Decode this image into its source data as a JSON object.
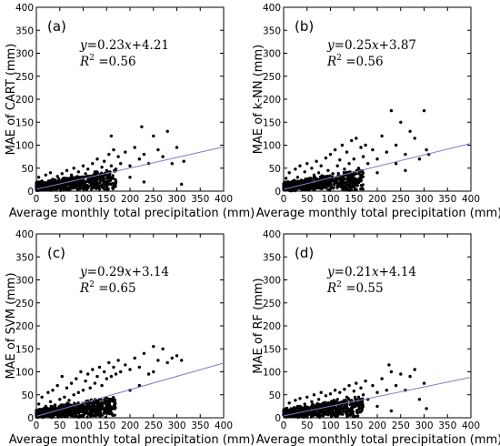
{
  "chart_data": [
    {
      "type": "scatter",
      "panel_label": "(a)",
      "ylabel": "MAE of CART (mm)",
      "xlabel": "Average monthly total precipitation (mm)",
      "xlim": [
        0,
        400
      ],
      "ylim": [
        0,
        400
      ],
      "xticks": [
        0,
        50,
        100,
        150,
        200,
        250,
        300,
        350,
        400
      ],
      "yticks": [
        0,
        50,
        100,
        150,
        200,
        250,
        300,
        350,
        400
      ],
      "fit": {
        "slope": 0.23,
        "intercept": 4.21,
        "r2": 0.56,
        "eq_text": "y=0.23x+4.21",
        "r2_text": "R2 =0.56"
      },
      "points": [
        [
          5,
          30
        ],
        [
          12,
          22
        ],
        [
          20,
          35
        ],
        [
          25,
          18
        ],
        [
          30,
          40
        ],
        [
          35,
          26
        ],
        [
          40,
          15
        ],
        [
          45,
          32
        ],
        [
          50,
          20
        ],
        [
          55,
          38
        ],
        [
          60,
          28
        ],
        [
          65,
          45
        ],
        [
          70,
          22
        ],
        [
          75,
          35
        ],
        [
          80,
          50
        ],
        [
          85,
          30
        ],
        [
          90,
          42
        ],
        [
          95,
          25
        ],
        [
          100,
          55
        ],
        [
          105,
          38
        ],
        [
          110,
          48
        ],
        [
          115,
          30
        ],
        [
          120,
          60
        ],
        [
          125,
          42
        ],
        [
          130,
          70
        ],
        [
          135,
          35
        ],
        [
          140,
          52
        ],
        [
          145,
          65
        ],
        [
          150,
          45
        ],
        [
          155,
          80
        ],
        [
          160,
          55
        ],
        [
          165,
          90
        ],
        [
          170,
          48
        ],
        [
          175,
          75
        ],
        [
          180,
          60
        ],
        [
          190,
          85
        ],
        [
          200,
          55
        ],
        [
          210,
          95
        ],
        [
          220,
          70
        ],
        [
          225,
          140
        ],
        [
          230,
          80
        ],
        [
          240,
          60
        ],
        [
          250,
          120
        ],
        [
          260,
          90
        ],
        [
          270,
          75
        ],
        [
          280,
          130
        ],
        [
          290,
          60
        ],
        [
          300,
          95
        ],
        [
          310,
          15
        ],
        [
          315,
          65
        ],
        [
          160,
          120
        ],
        [
          170,
          20
        ],
        [
          200,
          30
        ],
        [
          230,
          20
        ]
      ]
    },
    {
      "type": "scatter",
      "panel_label": "(b)",
      "ylabel": "MAE of k-NN (mm)",
      "xlabel": "Average monthly total precipitation (mm)",
      "xlim": [
        0,
        400
      ],
      "ylim": [
        0,
        400
      ],
      "xticks": [
        0,
        50,
        100,
        150,
        200,
        250,
        300,
        350,
        400
      ],
      "yticks": [
        0,
        50,
        100,
        150,
        200,
        250,
        300,
        350,
        400
      ],
      "fit": {
        "slope": 0.25,
        "intercept": 3.87,
        "r2": 0.56,
        "eq_text": "y=0.25x+3.87",
        "r2_text": "R2 =0.56"
      },
      "points": [
        [
          5,
          28
        ],
        [
          12,
          40
        ],
        [
          20,
          22
        ],
        [
          25,
          48
        ],
        [
          30,
          30
        ],
        [
          35,
          55
        ],
        [
          40,
          20
        ],
        [
          45,
          42
        ],
        [
          50,
          60
        ],
        [
          55,
          28
        ],
        [
          60,
          50
        ],
        [
          65,
          35
        ],
        [
          70,
          65
        ],
        [
          75,
          40
        ],
        [
          80,
          55
        ],
        [
          85,
          30
        ],
        [
          90,
          72
        ],
        [
          95,
          45
        ],
        [
          100,
          80
        ],
        [
          105,
          38
        ],
        [
          110,
          90
        ],
        [
          115,
          55
        ],
        [
          120,
          68
        ],
        [
          125,
          100
        ],
        [
          130,
          48
        ],
        [
          135,
          85
        ],
        [
          140,
          60
        ],
        [
          145,
          110
        ],
        [
          150,
          70
        ],
        [
          155,
          115
        ],
        [
          160,
          50
        ],
        [
          165,
          95
        ],
        [
          170,
          75
        ],
        [
          175,
          100
        ],
        [
          180,
          60
        ],
        [
          190,
          90
        ],
        [
          200,
          70
        ],
        [
          210,
          120
        ],
        [
          220,
          85
        ],
        [
          230,
          175
        ],
        [
          240,
          100
        ],
        [
          250,
          150
        ],
        [
          260,
          80
        ],
        [
          270,
          130
        ],
        [
          280,
          115
        ],
        [
          290,
          70
        ],
        [
          300,
          175
        ],
        [
          305,
          90
        ],
        [
          310,
          80
        ],
        [
          240,
          60
        ],
        [
          200,
          40
        ],
        [
          260,
          45
        ]
      ]
    },
    {
      "type": "scatter",
      "panel_label": "(c)",
      "ylabel": "MAE of SVM (mm)",
      "xlabel": "Average monthly total precipitation (mm)",
      "xlim": [
        0,
        400
      ],
      "ylim": [
        0,
        400
      ],
      "xticks": [
        0,
        50,
        100,
        150,
        200,
        250,
        300,
        350,
        400
      ],
      "yticks": [
        0,
        50,
        100,
        150,
        200,
        250,
        300,
        350,
        400
      ],
      "fit": {
        "slope": 0.29,
        "intercept": 3.14,
        "r2": 0.65,
        "eq_text": "y=0.29x+3.14",
        "r2_text": "R2 =0.65"
      },
      "points": [
        [
          5,
          30
        ],
        [
          12,
          45
        ],
        [
          20,
          25
        ],
        [
          25,
          55
        ],
        [
          30,
          35
        ],
        [
          35,
          60
        ],
        [
          40,
          28
        ],
        [
          45,
          70
        ],
        [
          50,
          40
        ],
        [
          55,
          90
        ],
        [
          60,
          45
        ],
        [
          65,
          65
        ],
        [
          70,
          38
        ],
        [
          75,
          75
        ],
        [
          80,
          50
        ],
        [
          85,
          85
        ],
        [
          90,
          55
        ],
        [
          95,
          100
        ],
        [
          100,
          60
        ],
        [
          105,
          80
        ],
        [
          110,
          95
        ],
        [
          115,
          65
        ],
        [
          120,
          105
        ],
        [
          125,
          75
        ],
        [
          130,
          90
        ],
        [
          135,
          110
        ],
        [
          140,
          70
        ],
        [
          145,
          100
        ],
        [
          150,
          85
        ],
        [
          155,
          120
        ],
        [
          160,
          90
        ],
        [
          165,
          110
        ],
        [
          170,
          95
        ],
        [
          175,
          125
        ],
        [
          180,
          100
        ],
        [
          190,
          115
        ],
        [
          200,
          105
        ],
        [
          210,
          130
        ],
        [
          220,
          110
        ],
        [
          230,
          140
        ],
        [
          240,
          95
        ],
        [
          250,
          155
        ],
        [
          260,
          125
        ],
        [
          270,
          150
        ],
        [
          280,
          120
        ],
        [
          290,
          130
        ],
        [
          300,
          135
        ],
        [
          310,
          125
        ],
        [
          200,
          60
        ],
        [
          220,
          70
        ],
        [
          250,
          100
        ]
      ]
    },
    {
      "type": "scatter",
      "panel_label": "(d)",
      "ylabel": "MAE of RF (mm)",
      "xlabel": "Average monthly total precipitation (mm)",
      "xlim": [
        0,
        400
      ],
      "ylim": [
        0,
        400
      ],
      "xticks": [
        0,
        50,
        100,
        150,
        200,
        250,
        300,
        350,
        400
      ],
      "yticks": [
        0,
        50,
        100,
        150,
        200,
        250,
        300,
        350,
        400
      ],
      "fit": {
        "slope": 0.21,
        "intercept": 4.14,
        "r2": 0.55,
        "eq_text": "y=0.21x+4.14",
        "r2_text": "R2 =0.55"
      },
      "points": [
        [
          5,
          20
        ],
        [
          12,
          32
        ],
        [
          20,
          18
        ],
        [
          25,
          38
        ],
        [
          30,
          25
        ],
        [
          35,
          42
        ],
        [
          40,
          15
        ],
        [
          45,
          30
        ],
        [
          50,
          45
        ],
        [
          55,
          22
        ],
        [
          60,
          35
        ],
        [
          65,
          50
        ],
        [
          70,
          28
        ],
        [
          75,
          40
        ],
        [
          80,
          55
        ],
        [
          85,
          32
        ],
        [
          90,
          48
        ],
        [
          95,
          26
        ],
        [
          100,
          52
        ],
        [
          105,
          35
        ],
        [
          110,
          60
        ],
        [
          115,
          40
        ],
        [
          120,
          55
        ],
        [
          125,
          30
        ],
        [
          130,
          62
        ],
        [
          135,
          45
        ],
        [
          140,
          70
        ],
        [
          145,
          38
        ],
        [
          150,
          58
        ],
        [
          155,
          75
        ],
        [
          160,
          45
        ],
        [
          165,
          65
        ],
        [
          170,
          50
        ],
        [
          175,
          80
        ],
        [
          180,
          40
        ],
        [
          190,
          70
        ],
        [
          200,
          55
        ],
        [
          210,
          85
        ],
        [
          220,
          60
        ],
        [
          225,
          115
        ],
        [
          230,
          100
        ],
        [
          240,
          70
        ],
        [
          250,
          95
        ],
        [
          260,
          60
        ],
        [
          270,
          90
        ],
        [
          280,
          105
        ],
        [
          290,
          40
        ],
        [
          300,
          75
        ],
        [
          305,
          20
        ],
        [
          200,
          25
        ],
        [
          230,
          15
        ]
      ]
    }
  ]
}
